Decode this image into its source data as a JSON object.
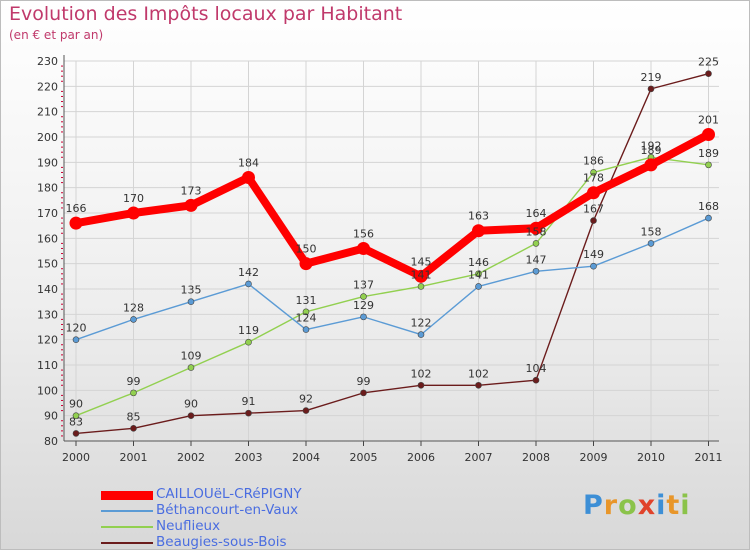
{
  "title": "Evolution des Impôts locaux par Habitant",
  "subtitle": "(en € et par an)",
  "brand": "Proxiti",
  "chart_data": {
    "type": "line",
    "title": "Evolution des Impôts locaux par Habitant",
    "subtitle": "(en € et par an)",
    "xlabel": "",
    "ylabel": "",
    "x": [
      "2000",
      "2001",
      "2002",
      "2003",
      "2004",
      "2005",
      "2006",
      "2007",
      "2008",
      "2009",
      "2010",
      "2011"
    ],
    "ylim": [
      80,
      230
    ],
    "yticks": [
      80,
      90,
      100,
      110,
      120,
      130,
      140,
      150,
      160,
      170,
      180,
      190,
      200,
      210,
      220,
      230
    ],
    "grid": true,
    "legend_position": "bottom-left",
    "series": [
      {
        "name": "CAILLOUëL-CRéPIGNY",
        "color": "#ff0000",
        "values": [
          166,
          170,
          173,
          184,
          150,
          156,
          145,
          163,
          164,
          178,
          189,
          201
        ],
        "labels": [
          "166",
          "170",
          "173",
          "184",
          "150",
          "156",
          "145",
          "163",
          "164",
          "178",
          "189",
          "201"
        ]
      },
      {
        "name": "Béthancourt-en-Vaux",
        "color": "#5b9bd5",
        "values": [
          120,
          128,
          135,
          142,
          124,
          129,
          122,
          141,
          147,
          149,
          158,
          168
        ],
        "labels": [
          "120",
          "128",
          "135",
          "142",
          "124",
          "129",
          "122",
          "141",
          "147",
          "149",
          "158",
          "168"
        ]
      },
      {
        "name": "Neuflieux",
        "color": "#92d050",
        "values": [
          90,
          99,
          109,
          119,
          131,
          137,
          141,
          146,
          158,
          186,
          192,
          189
        ],
        "labels": [
          "90",
          "99",
          "109",
          "119",
          "131",
          "137",
          "141",
          "146",
          "158",
          "186",
          "192",
          "189"
        ]
      },
      {
        "name": "Beaugies-sous-Bois",
        "color": "#6b1c1c",
        "values": [
          83,
          85,
          90,
          91,
          92,
          99,
          102,
          102,
          104,
          167,
          219,
          225
        ],
        "labels": [
          "83",
          "85",
          "90",
          "91",
          "92",
          "99",
          "102",
          "102",
          "104",
          "167",
          "219",
          "225"
        ]
      }
    ]
  }
}
